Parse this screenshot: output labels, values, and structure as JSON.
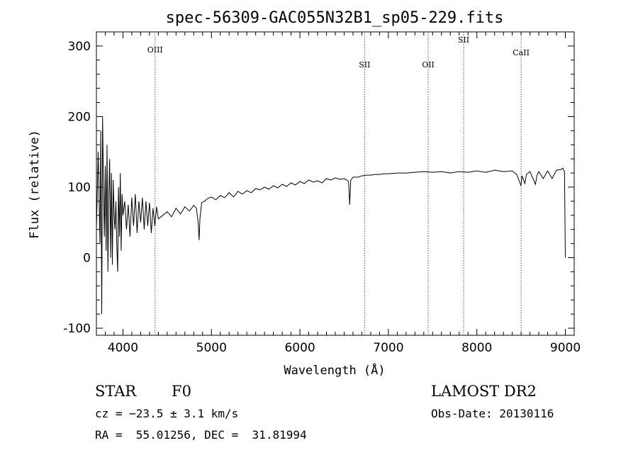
{
  "chart_data": {
    "type": "line",
    "title": "spec-56309-GAC055N32B1_sp05-229.fits",
    "xlabel": "Wavelength (Å)",
    "ylabel": "Flux (relative)",
    "xlim": [
      3700,
      9100
    ],
    "ylim": [
      -110,
      320
    ],
    "xticks": [
      4000,
      5000,
      6000,
      7000,
      8000,
      9000
    ],
    "yticks": [
      -100,
      0,
      100,
      200,
      300
    ],
    "grid": false,
    "series": [
      {
        "x": [
          3700,
          3720,
          3740,
          3750,
          3760,
          3770,
          3780,
          3790,
          3800,
          3810,
          3820,
          3830,
          3840,
          3850,
          3860,
          3870,
          3880,
          3890,
          3900,
          3910,
          3920,
          3930,
          3940,
          3950,
          3960,
          3970,
          3980,
          3990,
          4000,
          4020,
          4040,
          4060,
          4080,
          4100,
          4120,
          4140,
          4160,
          4180,
          4200,
          4220,
          4240,
          4260,
          4280,
          4300,
          4320,
          4340,
          4360,
          4380,
          4400,
          4450,
          4500,
          4550,
          4600,
          4650,
          4700,
          4750,
          4800,
          4830,
          4850,
          4861,
          4870,
          4890,
          4920,
          4960,
          5000,
          5050,
          5100,
          5150,
          5200,
          5250,
          5300,
          5350,
          5400,
          5450,
          5500,
          5550,
          5600,
          5650,
          5700,
          5750,
          5800,
          5850,
          5900,
          5950,
          6000,
          6050,
          6100,
          6150,
          6200,
          6250,
          6300,
          6350,
          6400,
          6450,
          6500,
          6530,
          6550,
          6563,
          6575,
          6600,
          6650,
          6700,
          6750,
          6800,
          6850,
          6900,
          6950,
          7000,
          7100,
          7200,
          7300,
          7400,
          7500,
          7600,
          7700,
          7800,
          7900,
          8000,
          8100,
          8200,
          8300,
          8400,
          8450,
          8498,
          8510,
          8542,
          8560,
          8600,
          8662,
          8680,
          8700,
          8750,
          8800,
          8850,
          8900,
          8950,
          8970,
          8990,
          9000
        ],
        "values": [
          40,
          150,
          20,
          180,
          -80,
          200,
          100,
          30,
          130,
          10,
          160,
          -20,
          90,
          140,
          0,
          120,
          -10,
          110,
          60,
          40,
          80,
          20,
          -20,
          100,
          30,
          120,
          10,
          90,
          60,
          80,
          40,
          75,
          30,
          85,
          45,
          90,
          35,
          80,
          50,
          85,
          40,
          80,
          45,
          78,
          35,
          70,
          45,
          72,
          55,
          60,
          65,
          58,
          70,
          62,
          72,
          66,
          74,
          70,
          50,
          25,
          55,
          78,
          80,
          84,
          86,
          82,
          88,
          85,
          92,
          86,
          94,
          90,
          95,
          92,
          98,
          96,
          100,
          97,
          102,
          99,
          104,
          101,
          106,
          103,
          108,
          105,
          110,
          107,
          109,
          106,
          112,
          110,
          113,
          111,
          112,
          110,
          108,
          75,
          110,
          114,
          114,
          116,
          117,
          117,
          118,
          118,
          119,
          119,
          120,
          120,
          121,
          122,
          121,
          122,
          120,
          122,
          121,
          123,
          121,
          124,
          122,
          123,
          118,
          102,
          116,
          105,
          118,
          122,
          104,
          117,
          122,
          112,
          123,
          112,
          124,
          125,
          127,
          122,
          0
        ]
      }
    ],
    "annotations": [
      {
        "label": "OIII",
        "x": 4363
      },
      {
        "label": "SII",
        "x": 6731
      },
      {
        "label": "OII",
        "x": 7450
      },
      {
        "label": "SII",
        "x": 7850
      },
      {
        "label": "CaII",
        "x": 8500
      }
    ],
    "annotation_color": "#b03030"
  },
  "info": {
    "object_class": "STAR",
    "subclass": "F0",
    "survey": "LAMOST DR2",
    "cz": "cz = −23.5 ± 3.1 km/s",
    "obs_date": "Obs-Date: 20130116",
    "coords": "RA =  55.01256, DEC =  31.81994"
  }
}
